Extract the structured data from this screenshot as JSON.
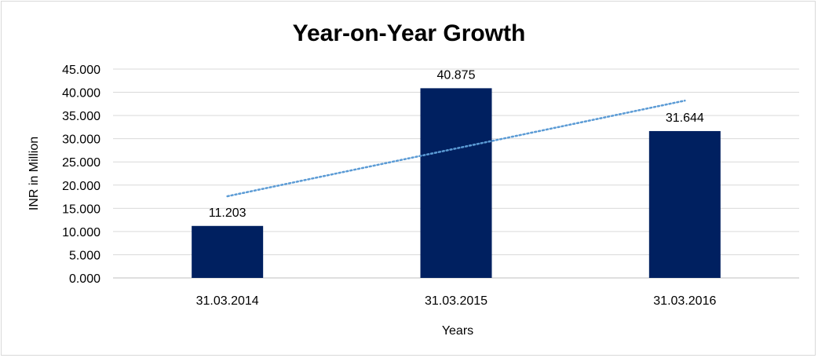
{
  "chart_data": {
    "type": "bar",
    "title": "Year-on-Year Growth",
    "xlabel": "Years",
    "ylabel": "INR in Million",
    "categories": [
      "31.03.2014",
      "31.03.2015",
      "31.03.2016"
    ],
    "values": [
      11.203,
      40.875,
      31.644
    ],
    "value_labels": [
      "11.203",
      "40.875",
      "31.644"
    ],
    "ylim": [
      0,
      45
    ],
    "y_ticks": [
      0,
      5,
      10,
      15,
      20,
      25,
      30,
      35,
      40,
      45
    ],
    "y_tick_labels": [
      "0.000",
      "5.000",
      "10.000",
      "15.000",
      "20.000",
      "25.000",
      "30.000",
      "35.000",
      "40.000",
      "45.000"
    ],
    "grid": true,
    "legend": "none",
    "trendline": {
      "type": "linear",
      "style": "dotted",
      "color": "#5b9bd5",
      "start": 17.6,
      "end": 38.2
    },
    "colors": {
      "bar": "#002060",
      "grid": "#d9d9d9",
      "axis": "#bfbfbf"
    }
  }
}
